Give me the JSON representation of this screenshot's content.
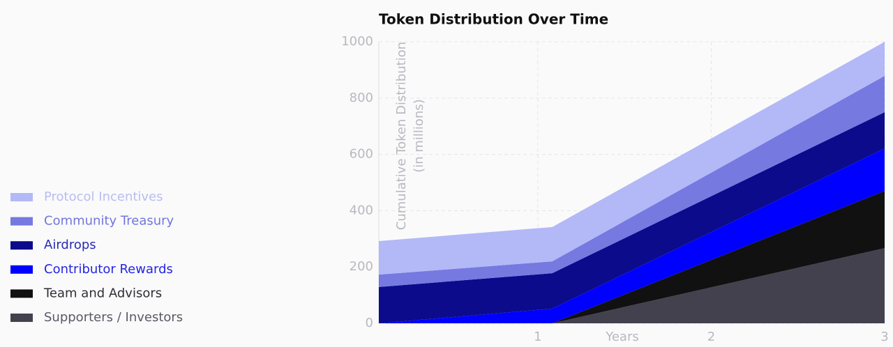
{
  "chart_data": {
    "type": "stacked_area",
    "title": "Token Distribution Over Time",
    "x_label": "Years",
    "y_label": [
      "Cumulative Token Distribution",
      "(in millions)"
    ],
    "x": [
      0.083,
      1.083,
      3
    ],
    "xlim": [
      0.083,
      3
    ],
    "xticks": [
      1,
      2,
      3
    ],
    "ylim": [
      0,
      1000
    ],
    "yticks": [
      0,
      200,
      400,
      600,
      800,
      1000
    ],
    "grid": true,
    "legend": "left",
    "series": [
      {
        "name": "Supporters / Investors",
        "color": "#44414f",
        "text_color": "#5a5966",
        "values": [
          0,
          0,
          267
        ]
      },
      {
        "name": "Team and Advisors",
        "color": "#111111",
        "text_color": "#2e2e36",
        "values": [
          0,
          0,
          203
        ]
      },
      {
        "name": "Contributor Rewards",
        "color": "#0000ff",
        "text_color": "#2424e6",
        "values": [
          0,
          52,
          151
        ]
      },
      {
        "name": "Airdrops",
        "color": "#0b0b8c",
        "text_color": "#2a2ab5",
        "values": [
          129,
          126,
          129
        ]
      },
      {
        "name": "Community Treasury",
        "color": "#7679e0",
        "text_color": "#7275dd",
        "values": [
          44,
          42,
          129
        ]
      },
      {
        "name": "Protocol Incentives",
        "color": "#b3b8f7",
        "text_color": "#b9bdf0",
        "values": [
          119,
          122,
          121
        ]
      }
    ]
  }
}
